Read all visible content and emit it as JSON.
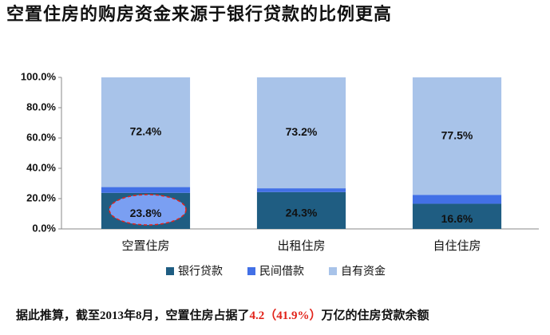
{
  "chart_data": {
    "type": "stacked-bar",
    "title": "空置住房的购房资金来源于银行贷款的比例更高",
    "categories": [
      "空置住房",
      "出租住房",
      "自住住房"
    ],
    "series": [
      {
        "name": "银行贷款",
        "color": "#1f5d82",
        "values": [
          23.8,
          24.3,
          16.6
        ],
        "value_labels": [
          "23.8%",
          "24.3%",
          "16.6%"
        ]
      },
      {
        "name": "民间借款",
        "color": "#4270e6",
        "values": [
          3.8,
          2.5,
          5.9
        ]
      },
      {
        "name": "自有资金",
        "color": "#a8c3e9",
        "values": [
          72.4,
          73.2,
          77.5
        ],
        "value_labels": [
          "72.4%",
          "73.2%",
          "77.5%"
        ]
      }
    ],
    "ylim": [
      0,
      100
    ],
    "yticks": [
      {
        "value": 0,
        "label": "0.0%"
      },
      {
        "value": 20,
        "label": "20.0%"
      },
      {
        "value": 40,
        "label": "40.0%"
      },
      {
        "value": 60,
        "label": "60.0%"
      },
      {
        "value": 80,
        "label": "80.0%"
      },
      {
        "value": 100,
        "label": "100.0%"
      }
    ],
    "grid": false,
    "legend": "bottom",
    "footnote": [
      "据此推算，截至2013年8月，空置住房占据了",
      "4.2",
      "（41.9%）",
      "万亿的住房贷款余额"
    ]
  }
}
